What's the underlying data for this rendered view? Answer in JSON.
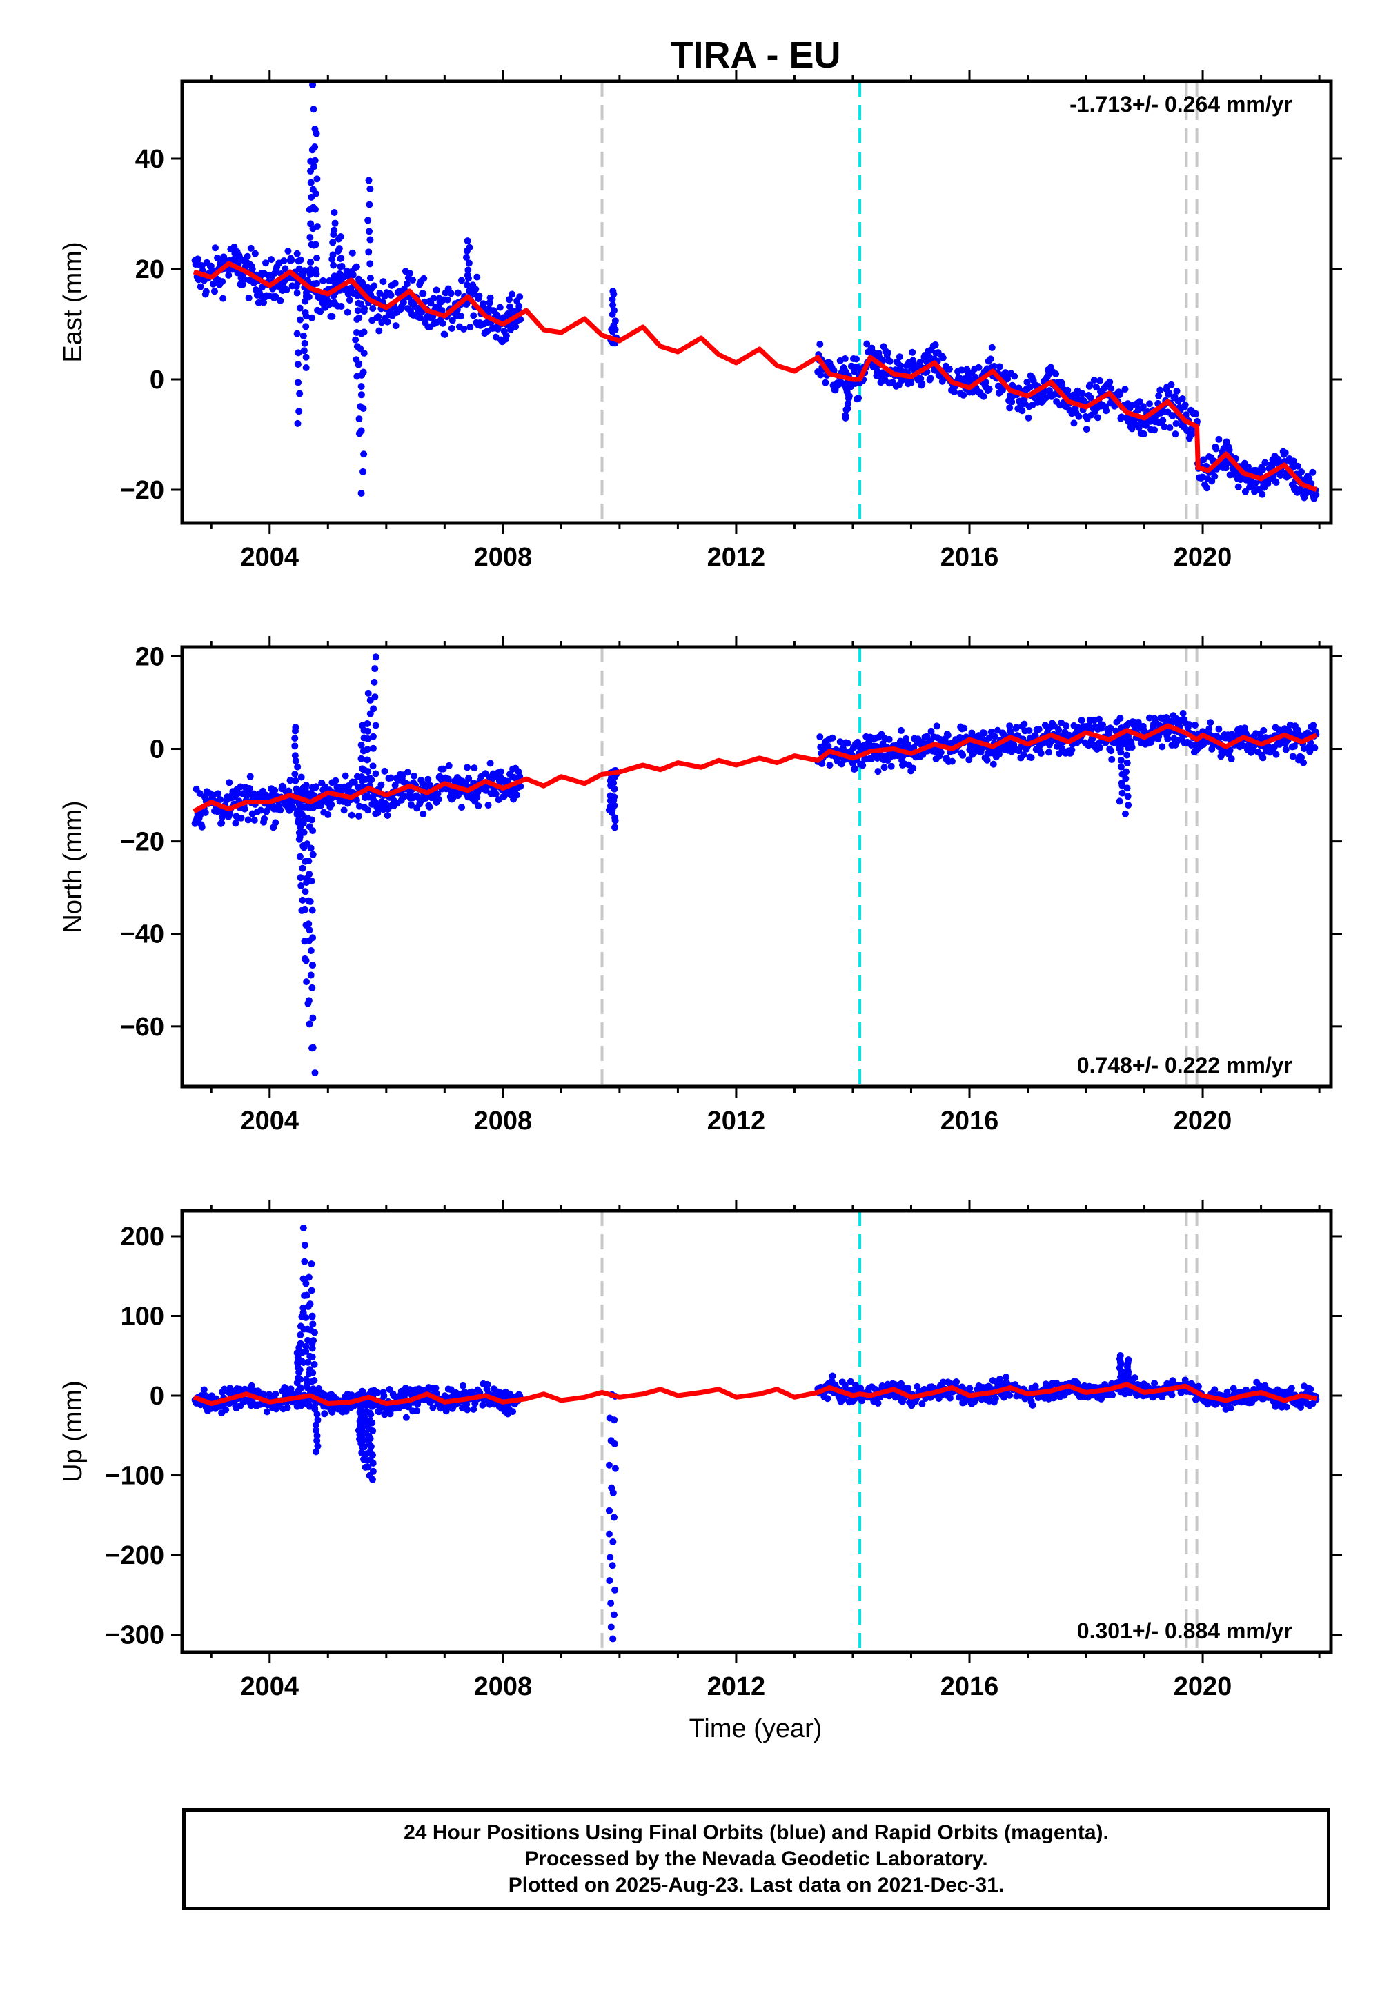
{
  "title": "TIRA - EU",
  "xlabel": "Time (year)",
  "footer": {
    "line1": "24 Hour Positions Using Final Orbits (blue) and Rapid Orbits (magenta).",
    "line2": "Processed by the Nevada Geodetic Laboratory.",
    "line3": "Plotted on 2025-Aug-23. Last data on 2021-Dec-31."
  },
  "chart_data": [
    {
      "type": "scatter",
      "ylabel": "East (mm)",
      "rate_label": "-1.713+/- 0.264 mm/yr",
      "rate_position": "top-right",
      "xlim": [
        2002.5,
        2022.2
      ],
      "ylim": [
        -26,
        54
      ],
      "xticks": [
        2004,
        2008,
        2012,
        2016,
        2020
      ],
      "yticks": [
        -20,
        0,
        20,
        40
      ],
      "colors": {
        "points": "#0000ff",
        "model": "#ff0000",
        "equipment": "#c8c8c8",
        "earthquake": "#00e5e5"
      },
      "vlines": [
        {
          "x": 2009.7,
          "kind": "equipment"
        },
        {
          "x": 2014.12,
          "kind": "earthquake"
        },
        {
          "x": 2019.72,
          "kind": "equipment"
        },
        {
          "x": 2019.9,
          "kind": "equipment"
        }
      ],
      "segments": [
        {
          "start": 2002.72,
          "end": 2008.3,
          "spread": 3
        },
        {
          "start": 2009.85,
          "end": 2009.95,
          "spread": 1
        },
        {
          "start": 2013.4,
          "end": 2021.95,
          "spread": 2.5
        }
      ],
      "series": [
        {
          "role": "model",
          "x": [
            2002.7,
            2003.0,
            2003.3,
            2003.6,
            2004.0,
            2004.35,
            2004.7,
            2005.0,
            2005.4,
            2005.7,
            2006.0,
            2006.4,
            2006.7,
            2007.0,
            2007.4,
            2007.7,
            2008.0,
            2008.4,
            2008.7,
            2009.0,
            2009.4,
            2009.7,
            2010.0,
            2010.4,
            2010.7,
            2011.0,
            2011.4,
            2011.7,
            2012.0,
            2012.4,
            2012.7,
            2013.0,
            2013.4,
            2013.6,
            2014.0,
            2014.12,
            2014.3,
            2014.7,
            2015.0,
            2015.4,
            2015.7,
            2016.0,
            2016.4,
            2016.7,
            2017.0,
            2017.4,
            2017.7,
            2018.0,
            2018.4,
            2018.7,
            2019.0,
            2019.4,
            2019.7,
            2019.9,
            2019.92,
            2020.1,
            2020.4,
            2020.7,
            2021.0,
            2021.4,
            2021.7,
            2021.95
          ],
          "y": [
            19.5,
            18.5,
            21.0,
            19.5,
            17.0,
            19.5,
            16.5,
            15.5,
            18.0,
            14.5,
            13.0,
            16.0,
            12.5,
            11.5,
            15.0,
            11.5,
            10.0,
            12.5,
            9.0,
            8.5,
            11.0,
            8.0,
            7.0,
            9.5,
            6.0,
            5.0,
            7.5,
            4.5,
            3.0,
            5.5,
            2.5,
            1.5,
            4.0,
            1.0,
            0.0,
            0.0,
            4.0,
            1.0,
            0.5,
            3.0,
            -0.5,
            -1.5,
            1.5,
            -2.0,
            -3.0,
            -0.5,
            -4.0,
            -5.0,
            -2.5,
            -6.0,
            -7.0,
            -4.0,
            -7.5,
            -8.5,
            -16.0,
            -16.5,
            -13.5,
            -17.0,
            -18.0,
            -15.5,
            -19.0,
            -20.0
          ]
        },
        {
          "role": "spikes",
          "x": [
            2004.5,
            2004.6,
            2004.7,
            2004.75,
            2004.8,
            2005.1,
            2005.2,
            2005.5,
            2005.55,
            2005.6,
            2005.7,
            2007.4,
            2009.9,
            2013.9
          ],
          "y": [
            -8,
            2,
            40,
            53,
            45,
            30,
            26,
            1,
            -10,
            -20,
            36,
            25,
            16,
            -7
          ]
        }
      ]
    },
    {
      "type": "scatter",
      "ylabel": "North (mm)",
      "rate_label": "0.748+/- 0.222 mm/yr",
      "rate_position": "bottom-right",
      "xlim": [
        2002.5,
        2022.2
      ],
      "ylim": [
        -73,
        22
      ],
      "xticks": [
        2004,
        2008,
        2012,
        2016,
        2020
      ],
      "yticks": [
        -60,
        -40,
        -20,
        0,
        20
      ],
      "vlines": [
        {
          "x": 2009.7,
          "kind": "equipment"
        },
        {
          "x": 2014.12,
          "kind": "earthquake"
        },
        {
          "x": 2019.72,
          "kind": "equipment"
        },
        {
          "x": 2019.9,
          "kind": "equipment"
        }
      ],
      "segments": [
        {
          "start": 2002.72,
          "end": 2008.3,
          "spread": 3
        },
        {
          "start": 2009.85,
          "end": 2009.95,
          "spread": 1
        },
        {
          "start": 2013.4,
          "end": 2021.95,
          "spread": 2.5
        }
      ],
      "series": [
        {
          "role": "model",
          "x": [
            2002.7,
            2003.0,
            2003.3,
            2003.6,
            2004.0,
            2004.35,
            2004.7,
            2005.0,
            2005.4,
            2005.7,
            2006.0,
            2006.4,
            2006.7,
            2007.0,
            2007.4,
            2007.7,
            2008.0,
            2008.4,
            2008.7,
            2009.0,
            2009.4,
            2009.7,
            2010.0,
            2010.4,
            2010.7,
            2011.0,
            2011.4,
            2011.7,
            2012.0,
            2012.4,
            2012.7,
            2013.0,
            2013.4,
            2013.6,
            2014.0,
            2014.12,
            2014.3,
            2014.7,
            2015.0,
            2015.4,
            2015.7,
            2016.0,
            2016.4,
            2016.7,
            2017.0,
            2017.4,
            2017.7,
            2018.0,
            2018.4,
            2018.7,
            2019.0,
            2019.4,
            2019.7,
            2019.9,
            2020.0,
            2020.4,
            2020.7,
            2021.0,
            2021.4,
            2021.7,
            2021.95
          ],
          "y": [
            -13.5,
            -11.5,
            -13.0,
            -11.5,
            -11.5,
            -10.0,
            -11.5,
            -9.5,
            -10.5,
            -8.5,
            -10.0,
            -8.0,
            -9.5,
            -7.5,
            -9.0,
            -7.0,
            -8.5,
            -6.5,
            -8.0,
            -6.0,
            -7.5,
            -5.5,
            -5.0,
            -3.5,
            -4.5,
            -3.0,
            -4.0,
            -2.5,
            -3.5,
            -2.0,
            -3.0,
            -1.5,
            -2.5,
            -0.5,
            -2.0,
            -1.5,
            -0.5,
            0.0,
            -1.0,
            1.0,
            0.0,
            2.0,
            0.5,
            2.5,
            1.0,
            3.0,
            1.5,
            3.5,
            2.0,
            4.0,
            2.5,
            5.0,
            3.5,
            2.0,
            3.0,
            0.5,
            2.5,
            1.0,
            3.0,
            1.5,
            3.0
          ]
        },
        {
          "role": "spikes",
          "x": [
            2004.45,
            2004.5,
            2004.55,
            2004.6,
            2004.65,
            2004.7,
            2004.75,
            2005.6,
            2005.7,
            2005.8,
            2009.85,
            2009.9,
            2018.6,
            2018.7
          ],
          "y": [
            5,
            -20,
            -35,
            -45,
            -55,
            -65,
            -70,
            5,
            12,
            20,
            -14,
            -17,
            -11,
            -14
          ]
        }
      ]
    },
    {
      "type": "scatter",
      "ylabel": "Up (mm)",
      "rate_label": "0.301+/- 0.884 mm/yr",
      "rate_position": "bottom-right",
      "xlim": [
        2002.5,
        2022.2
      ],
      "ylim": [
        -322,
        232
      ],
      "xticks": [
        2004,
        2008,
        2012,
        2016,
        2020
      ],
      "yticks": [
        -300,
        -200,
        -100,
        0,
        100,
        200
      ],
      "vlines": [
        {
          "x": 2009.7,
          "kind": "equipment"
        },
        {
          "x": 2014.12,
          "kind": "earthquake"
        },
        {
          "x": 2019.72,
          "kind": "equipment"
        },
        {
          "x": 2019.9,
          "kind": "equipment"
        }
      ],
      "segments": [
        {
          "start": 2002.72,
          "end": 2008.3,
          "spread": 10
        },
        {
          "start": 2013.4,
          "end": 2021.95,
          "spread": 8
        }
      ],
      "series": [
        {
          "role": "model",
          "x": [
            2002.7,
            2003.0,
            2003.3,
            2003.6,
            2004.0,
            2004.35,
            2004.7,
            2005.0,
            2005.4,
            2005.7,
            2006.0,
            2006.4,
            2006.7,
            2007.0,
            2007.4,
            2007.7,
            2008.0,
            2008.4,
            2008.7,
            2009.0,
            2009.4,
            2009.7,
            2010.0,
            2010.4,
            2010.7,
            2011.0,
            2011.4,
            2011.7,
            2012.0,
            2012.4,
            2012.7,
            2013.0,
            2013.4,
            2013.6,
            2014.0,
            2014.12,
            2014.3,
            2014.7,
            2015.0,
            2015.4,
            2015.7,
            2016.0,
            2016.4,
            2016.7,
            2017.0,
            2017.4,
            2017.7,
            2018.0,
            2018.4,
            2018.7,
            2019.0,
            2019.4,
            2019.7,
            2019.9,
            2020.0,
            2020.4,
            2020.7,
            2021.0,
            2021.4,
            2021.7,
            2021.95
          ],
          "y": [
            -2,
            -10,
            -4,
            2,
            -8,
            -4,
            0,
            -10,
            -8,
            -2,
            -10,
            -6,
            2,
            -8,
            -4,
            0,
            -8,
            -4,
            2,
            -6,
            -2,
            4,
            -2,
            2,
            8,
            0,
            4,
            8,
            -2,
            2,
            8,
            -2,
            4,
            10,
            0,
            2,
            0,
            8,
            -2,
            4,
            10,
            0,
            4,
            10,
            2,
            6,
            12,
            4,
            8,
            14,
            4,
            8,
            12,
            4,
            0,
            -6,
            0,
            4,
            -6,
            0,
            -4
          ]
        },
        {
          "role": "spikes",
          "x": [
            2004.5,
            2004.55,
            2004.6,
            2004.65,
            2004.7,
            2004.75,
            2004.8,
            2005.55,
            2005.6,
            2005.65,
            2005.7,
            2005.75,
            2009.85,
            2009.9,
            2018.6,
            2018.7
          ],
          "y": [
            60,
            110,
            210,
            140,
            165,
            100,
            -70,
            -60,
            -80,
            -90,
            -100,
            -105,
            -290,
            -305,
            50,
            45
          ]
        }
      ]
    }
  ]
}
